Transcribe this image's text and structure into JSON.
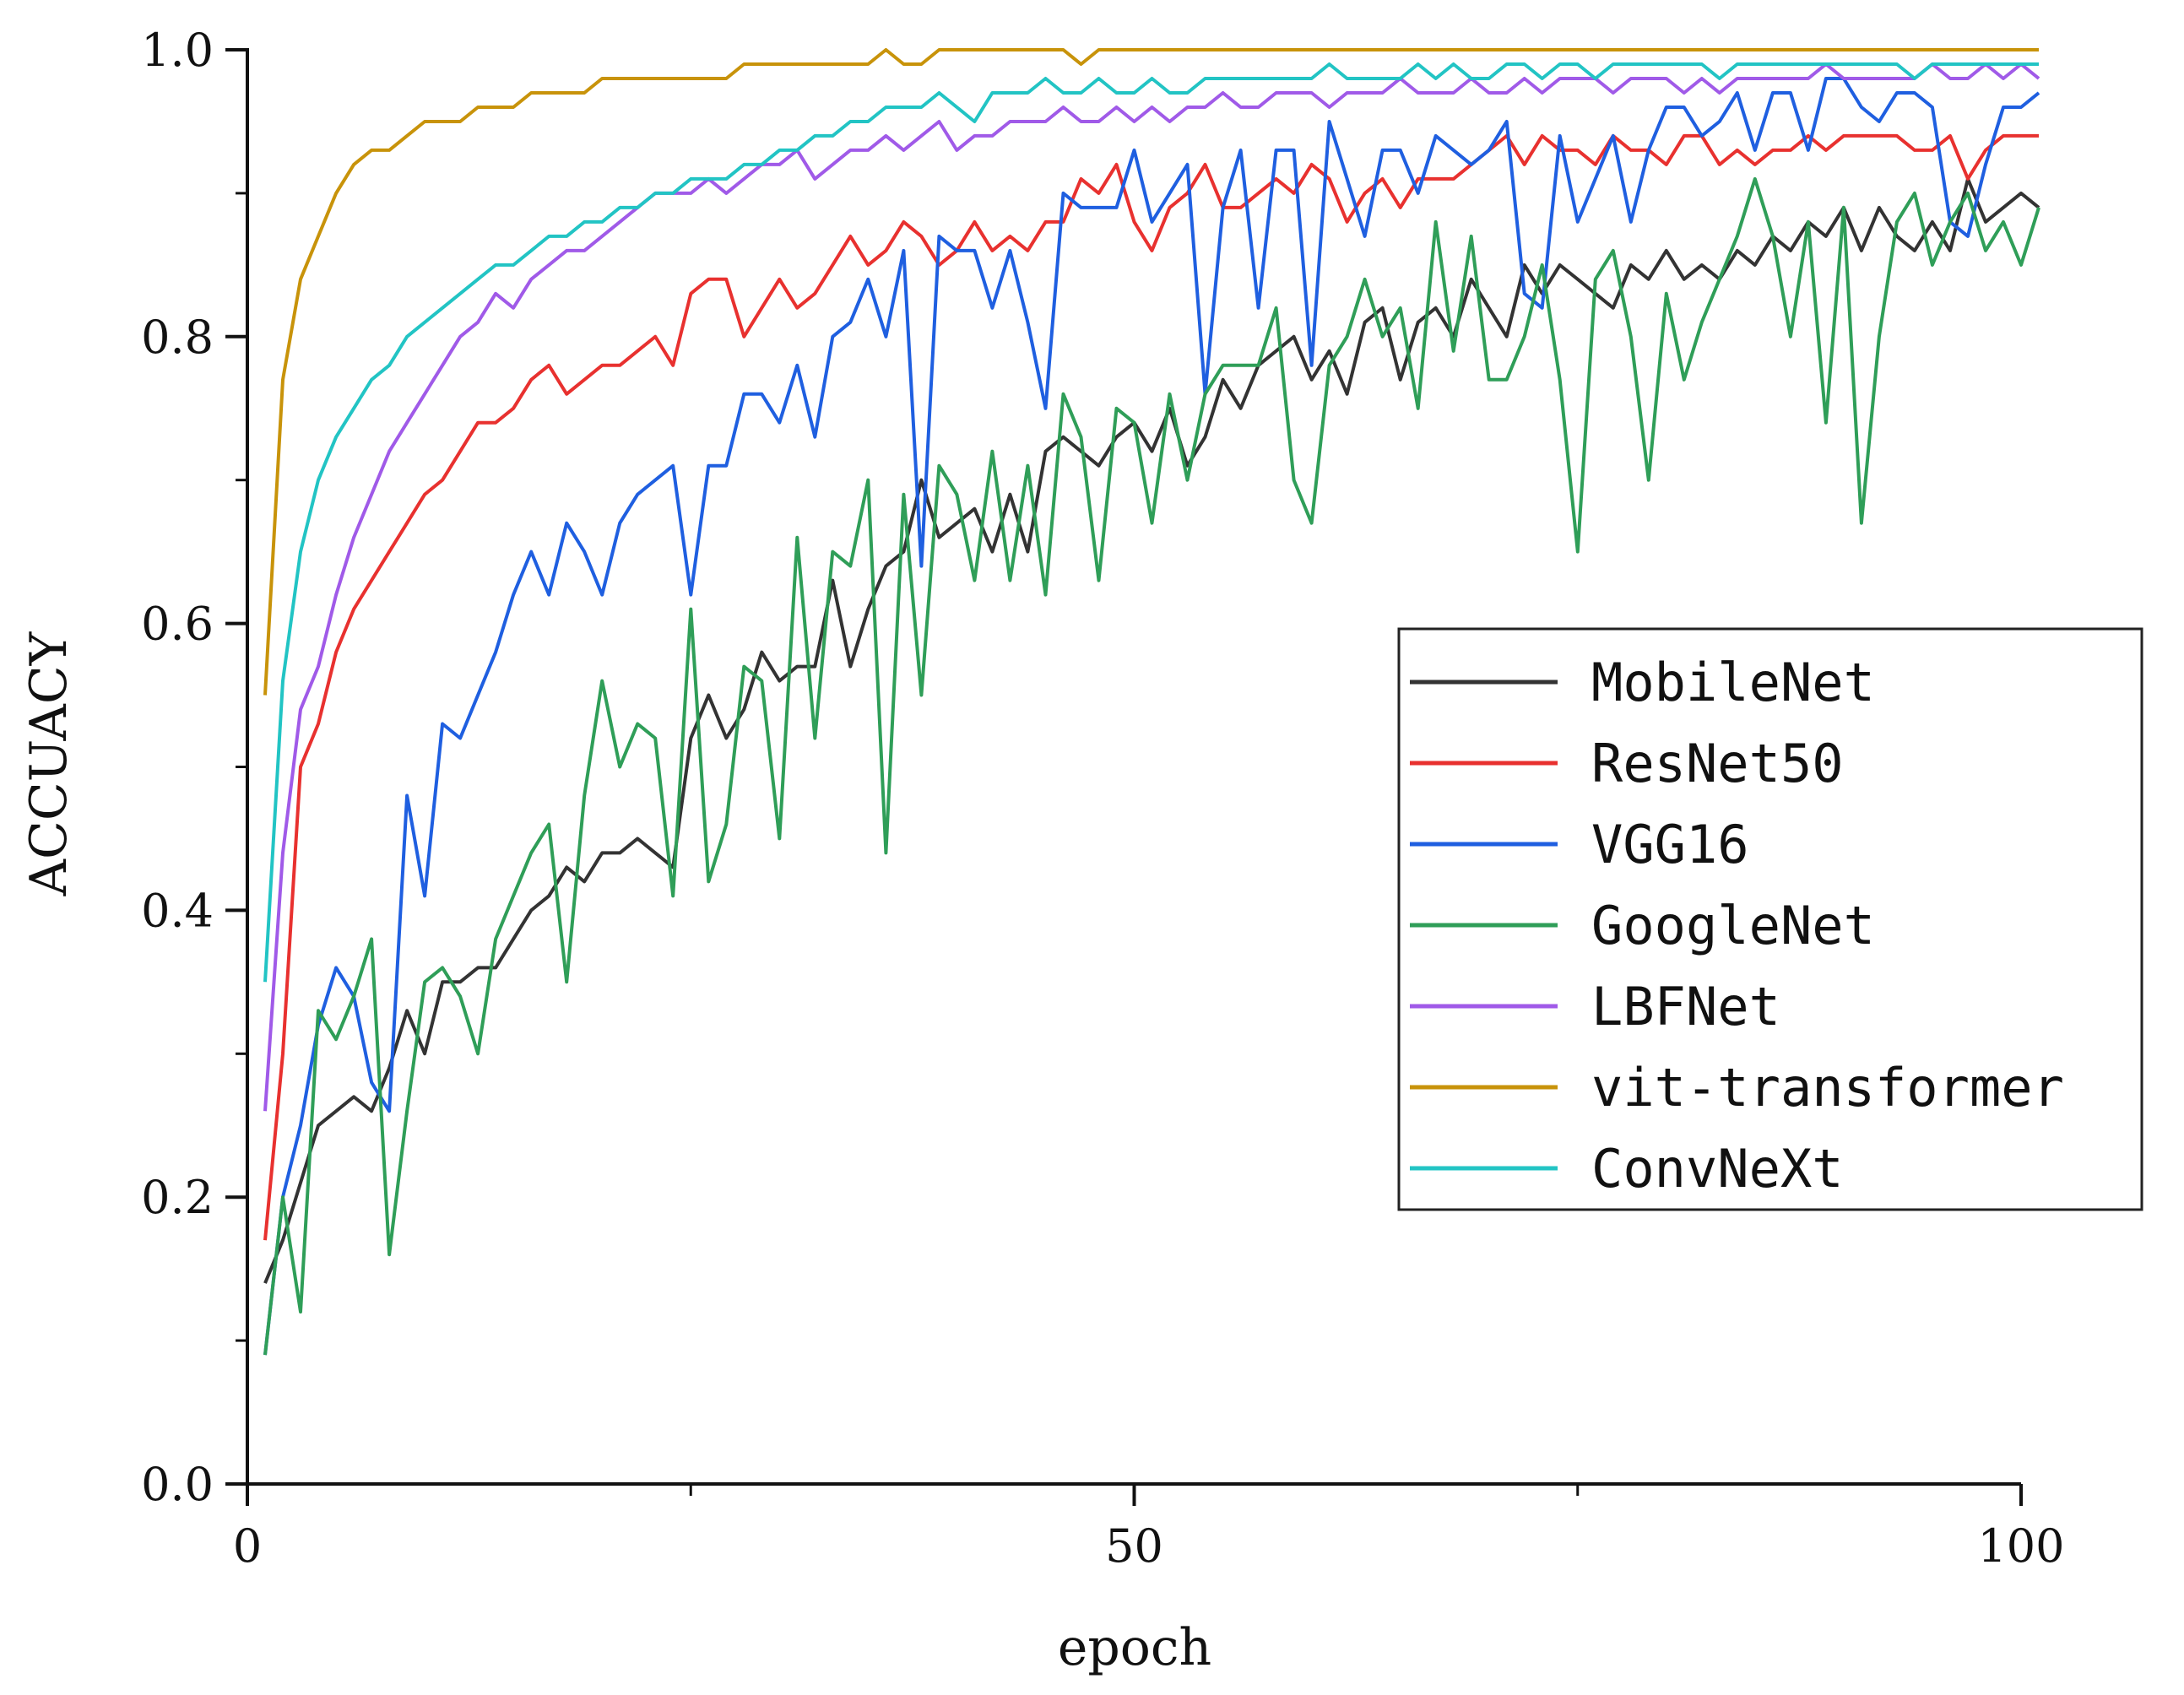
{
  "chart_data": {
    "type": "line",
    "title": "",
    "xlabel": "epoch",
    "ylabel": "ACCUACY",
    "xlim": [
      0,
      100
    ],
    "ylim": [
      0.0,
      1.0
    ],
    "x_ticks": [
      "0",
      "50",
      "100"
    ],
    "y_ticks": [
      "0.0",
      "0.2",
      "0.4",
      "0.6",
      "0.8",
      "1.0"
    ],
    "x_minor_ticks": [
      25,
      75
    ],
    "y_minor_ticks": [
      0.1,
      0.3,
      0.5,
      0.7,
      0.9
    ],
    "grid": false,
    "legend_position": "right",
    "epochs_start": 1,
    "series": [
      {
        "name": "MobileNet",
        "color": "#333333",
        "values": [
          0.14,
          0.17,
          0.21,
          0.25,
          0.26,
          0.27,
          0.26,
          0.29,
          0.33,
          0.3,
          0.35,
          0.35,
          0.36,
          0.36,
          0.38,
          0.4,
          0.41,
          0.43,
          0.42,
          0.44,
          0.44,
          0.45,
          0.44,
          0.43,
          0.52,
          0.55,
          0.52,
          0.54,
          0.58,
          0.56,
          0.57,
          0.57,
          0.63,
          0.57,
          0.61,
          0.64,
          0.65,
          0.7,
          0.66,
          0.67,
          0.68,
          0.65,
          0.69,
          0.65,
          0.72,
          0.73,
          0.72,
          0.71,
          0.73,
          0.74,
          0.72,
          0.75,
          0.71,
          0.73,
          0.77,
          0.75,
          0.78,
          0.79,
          0.8,
          0.77,
          0.79,
          0.76,
          0.81,
          0.82,
          0.77,
          0.81,
          0.82,
          0.8,
          0.84,
          0.82,
          0.8,
          0.85,
          0.83,
          0.85,
          0.84,
          0.83,
          0.82,
          0.85,
          0.84,
          0.86,
          0.84,
          0.85,
          0.84,
          0.86,
          0.85,
          0.87,
          0.86,
          0.88,
          0.87,
          0.89,
          0.86,
          0.89,
          0.87,
          0.86,
          0.88,
          0.86,
          0.91,
          0.88,
          0.89,
          0.9,
          0.89
        ]
      },
      {
        "name": "ResNet50",
        "color": "#e8312f",
        "values": [
          0.17,
          0.3,
          0.5,
          0.53,
          0.58,
          0.61,
          0.63,
          0.65,
          0.67,
          0.69,
          0.7,
          0.72,
          0.74,
          0.74,
          0.75,
          0.77,
          0.78,
          0.76,
          0.77,
          0.78,
          0.78,
          0.79,
          0.8,
          0.78,
          0.83,
          0.84,
          0.84,
          0.8,
          0.82,
          0.84,
          0.82,
          0.83,
          0.85,
          0.87,
          0.85,
          0.86,
          0.88,
          0.87,
          0.85,
          0.86,
          0.88,
          0.86,
          0.87,
          0.86,
          0.88,
          0.88,
          0.91,
          0.9,
          0.92,
          0.88,
          0.86,
          0.89,
          0.9,
          0.92,
          0.89,
          0.89,
          0.9,
          0.91,
          0.9,
          0.92,
          0.91,
          0.88,
          0.9,
          0.91,
          0.89,
          0.91,
          0.91,
          0.91,
          0.92,
          0.93,
          0.94,
          0.92,
          0.94,
          0.93,
          0.93,
          0.92,
          0.94,
          0.93,
          0.93,
          0.92,
          0.94,
          0.94,
          0.92,
          0.93,
          0.92,
          0.93,
          0.93,
          0.94,
          0.93,
          0.94,
          0.94,
          0.94,
          0.94,
          0.93,
          0.93,
          0.94,
          0.91,
          0.93,
          0.94,
          0.94,
          0.94
        ]
      },
      {
        "name": "VGG16",
        "color": "#1f5fe0",
        "values": [
          0.09,
          0.2,
          0.25,
          0.32,
          0.36,
          0.34,
          0.28,
          0.26,
          0.48,
          0.41,
          0.53,
          0.52,
          0.55,
          0.58,
          0.62,
          0.65,
          0.62,
          0.67,
          0.65,
          0.62,
          0.67,
          0.69,
          0.7,
          0.71,
          0.62,
          0.71,
          0.71,
          0.76,
          0.76,
          0.74,
          0.78,
          0.73,
          0.8,
          0.81,
          0.84,
          0.8,
          0.86,
          0.64,
          0.87,
          0.86,
          0.86,
          0.82,
          0.86,
          0.81,
          0.75,
          0.9,
          0.89,
          0.89,
          0.89,
          0.93,
          0.88,
          0.9,
          0.92,
          0.76,
          0.89,
          0.93,
          0.82,
          0.93,
          0.93,
          0.78,
          0.95,
          0.91,
          0.87,
          0.93,
          0.93,
          0.9,
          0.94,
          0.93,
          0.92,
          0.93,
          0.95,
          0.83,
          0.82,
          0.94,
          0.88,
          0.91,
          0.94,
          0.88,
          0.93,
          0.96,
          0.96,
          0.94,
          0.95,
          0.97,
          0.93,
          0.97,
          0.97,
          0.93,
          0.98,
          0.98,
          0.96,
          0.95,
          0.97,
          0.97,
          0.96,
          0.88,
          0.87,
          0.92,
          0.96,
          0.96,
          0.97
        ]
      },
      {
        "name": "GoogleNet",
        "color": "#2f9e58",
        "values": [
          0.09,
          0.2,
          0.12,
          0.33,
          0.31,
          0.34,
          0.38,
          0.16,
          0.26,
          0.35,
          0.36,
          0.34,
          0.3,
          0.38,
          0.41,
          0.44,
          0.46,
          0.35,
          0.48,
          0.56,
          0.5,
          0.53,
          0.52,
          0.41,
          0.61,
          0.42,
          0.46,
          0.57,
          0.56,
          0.45,
          0.66,
          0.52,
          0.65,
          0.64,
          0.7,
          0.44,
          0.69,
          0.55,
          0.71,
          0.69,
          0.63,
          0.72,
          0.63,
          0.71,
          0.62,
          0.76,
          0.73,
          0.63,
          0.75,
          0.74,
          0.67,
          0.76,
          0.7,
          0.76,
          0.78,
          0.78,
          0.78,
          0.82,
          0.7,
          0.67,
          0.78,
          0.8,
          0.84,
          0.8,
          0.82,
          0.75,
          0.88,
          0.79,
          0.87,
          0.77,
          0.77,
          0.8,
          0.85,
          0.77,
          0.65,
          0.84,
          0.86,
          0.8,
          0.7,
          0.83,
          0.77,
          0.81,
          0.84,
          0.87,
          0.91,
          0.87,
          0.8,
          0.88,
          0.74,
          0.89,
          0.67,
          0.8,
          0.88,
          0.9,
          0.85,
          0.88,
          0.9,
          0.86,
          0.88,
          0.85,
          0.89
        ]
      },
      {
        "name": "LBFNet",
        "color": "#a05ae8",
        "values": [
          0.26,
          0.44,
          0.54,
          0.57,
          0.62,
          0.66,
          0.69,
          0.72,
          0.74,
          0.76,
          0.78,
          0.8,
          0.81,
          0.83,
          0.82,
          0.84,
          0.85,
          0.86,
          0.86,
          0.87,
          0.88,
          0.89,
          0.9,
          0.9,
          0.9,
          0.91,
          0.9,
          0.91,
          0.92,
          0.92,
          0.93,
          0.91,
          0.92,
          0.93,
          0.93,
          0.94,
          0.93,
          0.94,
          0.95,
          0.93,
          0.94,
          0.94,
          0.95,
          0.95,
          0.95,
          0.96,
          0.95,
          0.95,
          0.96,
          0.95,
          0.96,
          0.95,
          0.96,
          0.96,
          0.97,
          0.96,
          0.96,
          0.97,
          0.97,
          0.97,
          0.96,
          0.97,
          0.97,
          0.97,
          0.98,
          0.97,
          0.97,
          0.97,
          0.98,
          0.97,
          0.97,
          0.98,
          0.97,
          0.98,
          0.98,
          0.98,
          0.97,
          0.98,
          0.98,
          0.98,
          0.97,
          0.98,
          0.97,
          0.98,
          0.98,
          0.98,
          0.98,
          0.98,
          0.99,
          0.98,
          0.98,
          0.98,
          0.98,
          0.98,
          0.99,
          0.98,
          0.98,
          0.99,
          0.98,
          0.99,
          0.98
        ]
      },
      {
        "name": "vit-transformer",
        "color": "#c8930a",
        "values": [
          0.55,
          0.77,
          0.84,
          0.87,
          0.9,
          0.92,
          0.93,
          0.93,
          0.94,
          0.95,
          0.95,
          0.95,
          0.96,
          0.96,
          0.96,
          0.97,
          0.97,
          0.97,
          0.97,
          0.98,
          0.98,
          0.98,
          0.98,
          0.98,
          0.98,
          0.98,
          0.98,
          0.99,
          0.99,
          0.99,
          0.99,
          0.99,
          0.99,
          0.99,
          0.99,
          1.0,
          0.99,
          0.99,
          1.0,
          1.0,
          1.0,
          1.0,
          1.0,
          1.0,
          1.0,
          1.0,
          0.99,
          1.0,
          1.0,
          1.0,
          1.0,
          1.0,
          1.0,
          1.0,
          1.0,
          1.0,
          1.0,
          1.0,
          1.0,
          1.0,
          1.0,
          1.0,
          1.0,
          1.0,
          1.0,
          1.0,
          1.0,
          1.0,
          1.0,
          1.0,
          1.0,
          1.0,
          1.0,
          1.0,
          1.0,
          1.0,
          1.0,
          1.0,
          1.0,
          1.0,
          1.0,
          1.0,
          1.0,
          1.0,
          1.0,
          1.0,
          1.0,
          1.0,
          1.0,
          1.0,
          1.0,
          1.0,
          1.0,
          1.0,
          1.0,
          1.0,
          1.0,
          1.0,
          1.0,
          1.0,
          1.0
        ]
      },
      {
        "name": "ConvNeXt",
        "color": "#22c4c4",
        "values": [
          0.35,
          0.56,
          0.65,
          0.7,
          0.73,
          0.75,
          0.77,
          0.78,
          0.8,
          0.81,
          0.82,
          0.83,
          0.84,
          0.85,
          0.85,
          0.86,
          0.87,
          0.87,
          0.88,
          0.88,
          0.89,
          0.89,
          0.9,
          0.9,
          0.91,
          0.91,
          0.91,
          0.92,
          0.92,
          0.93,
          0.93,
          0.94,
          0.94,
          0.95,
          0.95,
          0.96,
          0.96,
          0.96,
          0.97,
          0.96,
          0.95,
          0.97,
          0.97,
          0.97,
          0.98,
          0.97,
          0.97,
          0.98,
          0.97,
          0.97,
          0.98,
          0.97,
          0.97,
          0.98,
          0.98,
          0.98,
          0.98,
          0.98,
          0.98,
          0.98,
          0.99,
          0.98,
          0.98,
          0.98,
          0.98,
          0.99,
          0.98,
          0.99,
          0.98,
          0.98,
          0.99,
          0.99,
          0.98,
          0.99,
          0.99,
          0.98,
          0.99,
          0.99,
          0.99,
          0.99,
          0.99,
          0.99,
          0.98,
          0.99,
          0.99,
          0.99,
          0.99,
          0.99,
          0.99,
          0.99,
          0.99,
          0.99,
          0.99,
          0.98,
          0.99,
          0.99,
          0.99,
          0.99,
          0.99,
          0.99,
          0.99
        ]
      }
    ]
  }
}
